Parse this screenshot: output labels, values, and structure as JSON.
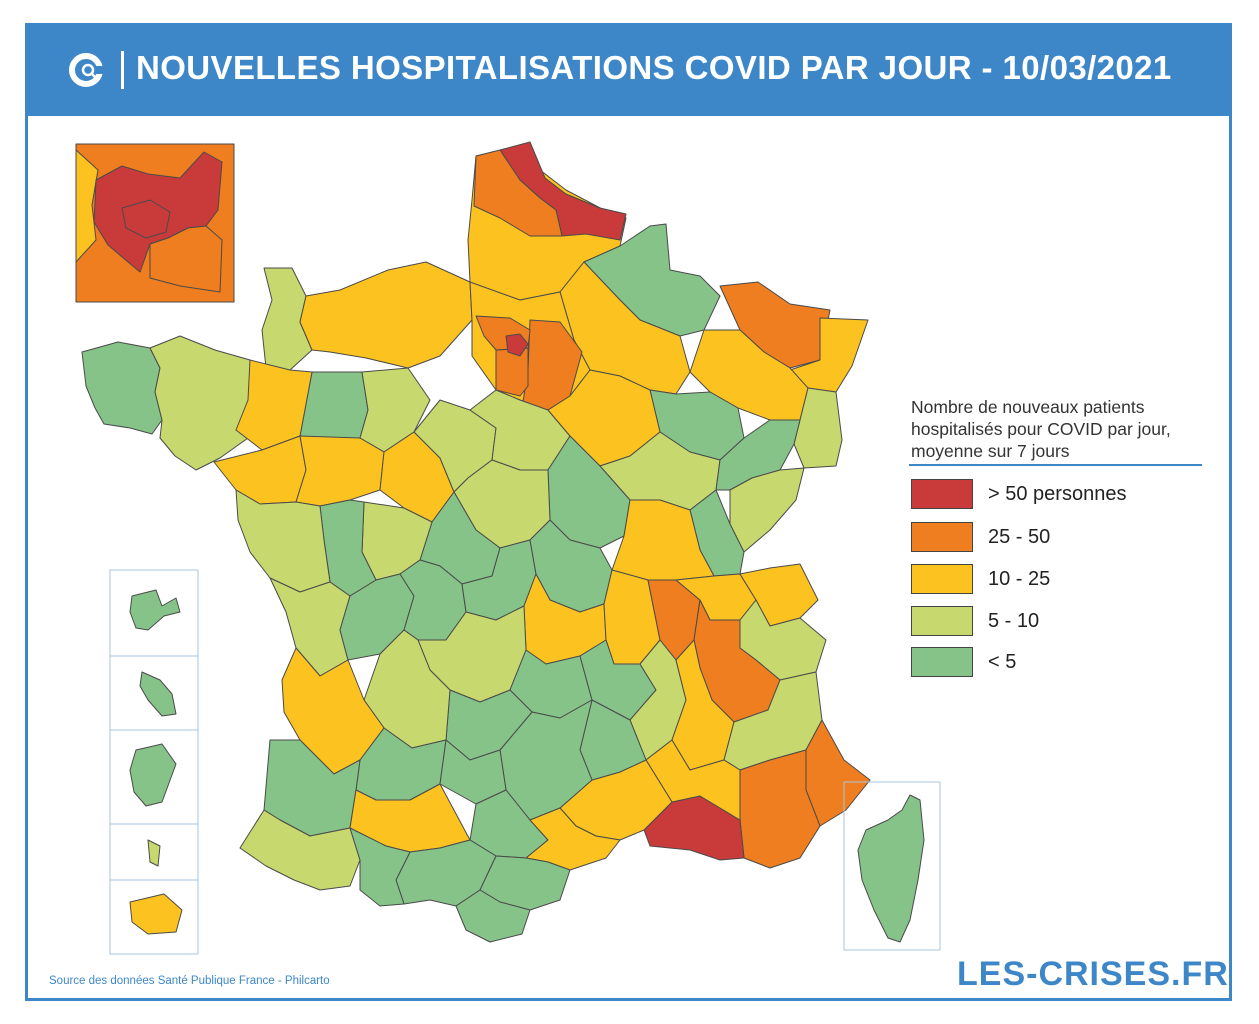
{
  "header": {
    "title": "NOUVELLES HOSPITALISATIONS COVID PAR JOUR - 10/03/2021",
    "color": "#3d87c8"
  },
  "legend": {
    "title": "Nombre de nouveaux patients hospitalisés pour COVID par jour, moyenne sur 7 jours",
    "items": [
      {
        "label": "> 50 personnes",
        "color": "#c93a3b"
      },
      {
        "label": "25 - 50",
        "color": "#ee7e1f"
      },
      {
        "label": "10 - 25",
        "color": "#fcc320"
      },
      {
        "label": "5 - 10",
        "color": "#c6d86e"
      },
      {
        "label": "< 5",
        "color": "#86c389"
      }
    ]
  },
  "source": "Source des données Santé Publique France - Philcarto",
  "brand": "LES-CRISES.FR",
  "map": {
    "insets": [
      "ile-de-france",
      "guadeloupe",
      "martinique",
      "guyane",
      "mayotte",
      "la-reunion",
      "corse"
    ]
  }
}
